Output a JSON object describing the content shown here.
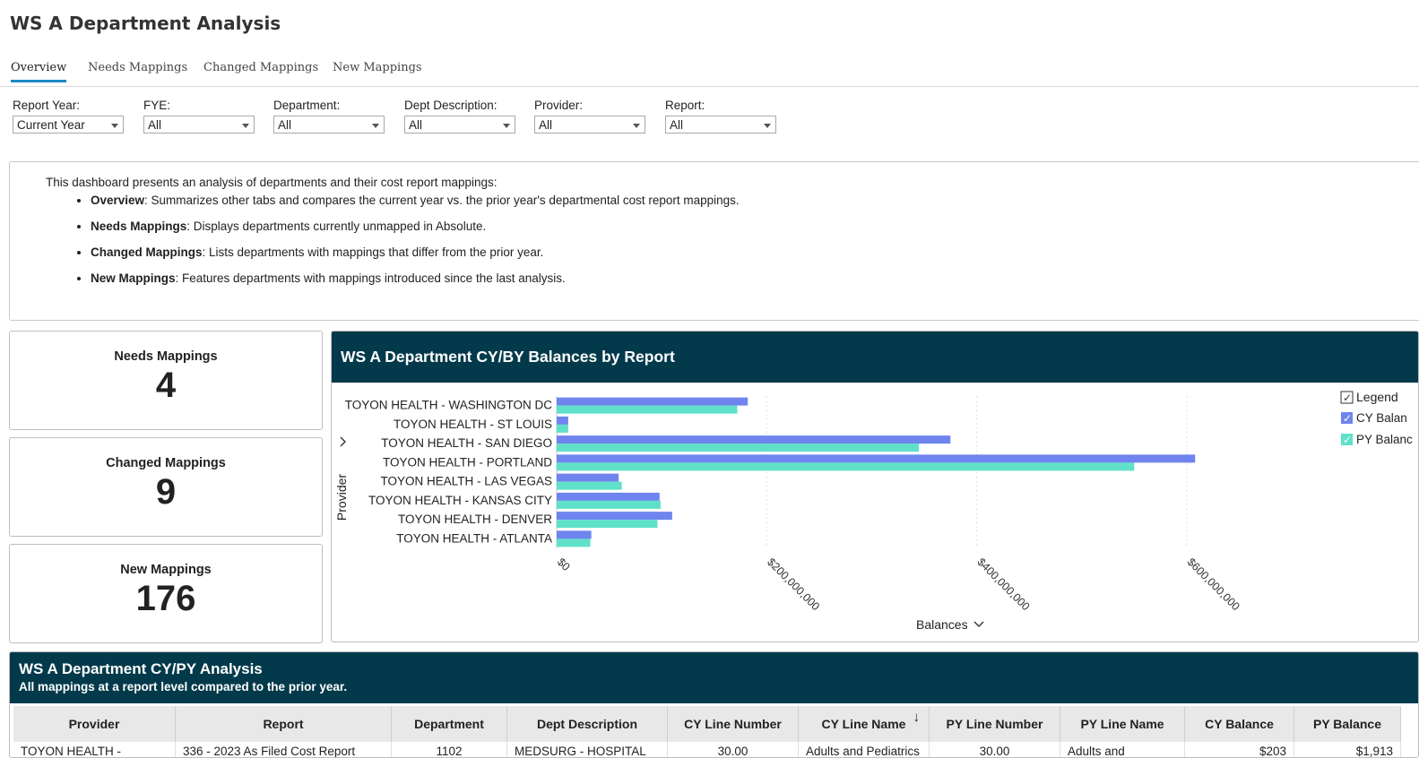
{
  "page_title": "WS A Department Analysis",
  "tabs": [
    {
      "label": "Overview",
      "active": true
    },
    {
      "label": "Needs Mappings",
      "active": false
    },
    {
      "label": "Changed Mappings",
      "active": false
    },
    {
      "label": "New Mappings",
      "active": false
    }
  ],
  "filters": [
    {
      "label": "Report Year:",
      "value": "Current Year"
    },
    {
      "label": "FYE:",
      "value": "All"
    },
    {
      "label": "Department:",
      "value": "All"
    },
    {
      "label": "Dept Description:",
      "value": "All"
    },
    {
      "label": "Provider:",
      "value": "All"
    },
    {
      "label": "Report:",
      "value": "All"
    }
  ],
  "description": {
    "intro": "This dashboard presents an analysis of departments and their cost report mappings:",
    "bullets": [
      {
        "term": "Overview",
        "text": ": Summarizes other tabs and compares the current year vs. the prior year's departmental cost report mappings."
      },
      {
        "term": "Needs Mappings",
        "text": ": Displays departments currently unmapped in Absolute."
      },
      {
        "term": "Changed Mappings",
        "text": ": Lists departments with mappings that differ from the prior year."
      },
      {
        "term": "New Mappings",
        "text": ": Features departments with mappings introduced since the last analysis."
      }
    ]
  },
  "kpis": [
    {
      "title": "Needs Mappings",
      "value": "4"
    },
    {
      "title": "Changed Mappings",
      "value": "9"
    },
    {
      "title": "New Mappings",
      "value": "176"
    }
  ],
  "chart_panel": {
    "title": "WS A Department CY/BY Balances by Report"
  },
  "chart_data": {
    "type": "bar",
    "orientation": "horizontal",
    "title": "WS A Department CY/BY Balances by Report",
    "xlabel": "Balances",
    "ylabel": "Provider",
    "xlim": [
      0,
      700000000
    ],
    "x_ticks": [
      0,
      200000000,
      400000000,
      600000000
    ],
    "x_tick_labels": [
      "$0",
      "$200,000,000",
      "$400,000,000",
      "$600,000,000"
    ],
    "grid": true,
    "categories": [
      "TOYON HEALTH - WASHINGTON DC",
      "TOYON HEALTH - ST LOUIS",
      "TOYON HEALTH - SAN DIEGO",
      "TOYON HEALTH - PORTLAND",
      "TOYON HEALTH - LAS VEGAS",
      "TOYON HEALTH - KANSAS CITY",
      "TOYON HEALTH - DENVER",
      "TOYON HEALTH - ATLANTA"
    ],
    "series": [
      {
        "name": "CY Balance",
        "color": "#6f84ee",
        "values": [
          182000000,
          11000000,
          375000000,
          608000000,
          59000000,
          98000000,
          110000000,
          33000000
        ]
      },
      {
        "name": "PY Balance",
        "color": "#5fe0c8",
        "values": [
          172000000,
          11000000,
          345000000,
          550000000,
          62000000,
          99000000,
          96000000,
          32000000
        ]
      }
    ],
    "legend": {
      "title": "Legend",
      "position": "right",
      "visible_labels": [
        "CY Balan",
        "PY Balanc"
      ]
    }
  },
  "table_panel": {
    "title": "WS A Department CY/PY Analysis",
    "subtitle": "All mappings at a report level compared to the prior year.",
    "columns": [
      "Provider",
      "Report",
      "Department",
      "Dept Description",
      "CY Line Number",
      "CY Line Name",
      "PY Line Number",
      "PY Line Name",
      "CY Balance",
      "PY Balance"
    ],
    "sort_indicator": "↓",
    "rows": [
      [
        "TOYON HEALTH -",
        "336 - 2023 As Filed Cost Report",
        "1102",
        "MEDSURG - HOSPITAL",
        "30.00",
        "Adults and Pediatrics",
        "30.00",
        "Adults and",
        "$203",
        "$1,913"
      ]
    ]
  },
  "colors": {
    "header_bg": "#033a4b",
    "tab_active": "#1e88c8"
  }
}
